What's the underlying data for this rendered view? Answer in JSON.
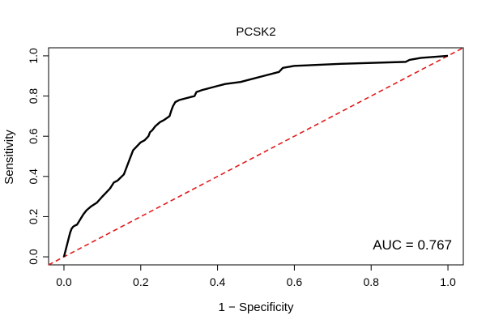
{
  "chart_data": {
    "type": "line",
    "title": "PCSK2",
    "xlabel": "1 − Specificity",
    "ylabel": "Sensitivity",
    "xlim": [
      -0.04,
      1.04
    ],
    "ylim": [
      -0.04,
      1.04
    ],
    "grid": false,
    "x_ticks": [
      0.0,
      0.2,
      0.4,
      0.6,
      0.8,
      1.0
    ],
    "x_tick_labels": [
      "0.0",
      "0.2",
      "0.4",
      "0.6",
      "0.8",
      "1.0"
    ],
    "y_ticks": [
      0.0,
      0.2,
      0.4,
      0.6,
      0.8,
      1.0
    ],
    "y_tick_labels": [
      "0.0",
      "0.2",
      "0.4",
      "0.6",
      "0.8",
      "1.0"
    ],
    "annotation": "AUC = 0.767",
    "series": [
      {
        "color": "#000000",
        "style": "solid",
        "x": [
          0.0,
          0.004,
          0.008,
          0.012,
          0.016,
          0.02,
          0.024,
          0.028,
          0.034,
          0.05,
          0.054,
          0.058,
          0.064,
          0.07,
          0.086,
          0.1,
          0.11,
          0.12,
          0.13,
          0.14,
          0.156,
          0.16,
          0.164,
          0.168,
          0.172,
          0.176,
          0.18,
          0.185,
          0.19,
          0.2,
          0.21,
          0.22,
          0.224,
          0.23,
          0.234,
          0.238,
          0.244,
          0.25,
          0.26,
          0.275,
          0.28,
          0.284,
          0.29,
          0.3,
          0.34,
          0.345,
          0.36,
          0.38,
          0.4,
          0.42,
          0.46,
          0.48,
          0.52,
          0.56,
          0.57,
          0.6,
          0.72,
          0.89,
          0.9,
          0.93,
          1.0
        ],
        "y": [
          0.0,
          0.03,
          0.06,
          0.09,
          0.12,
          0.14,
          0.15,
          0.155,
          0.16,
          0.21,
          0.22,
          0.23,
          0.24,
          0.25,
          0.27,
          0.3,
          0.32,
          0.34,
          0.37,
          0.38,
          0.41,
          0.43,
          0.45,
          0.47,
          0.49,
          0.51,
          0.53,
          0.54,
          0.55,
          0.57,
          0.58,
          0.6,
          0.62,
          0.63,
          0.64,
          0.65,
          0.66,
          0.67,
          0.68,
          0.7,
          0.73,
          0.75,
          0.77,
          0.78,
          0.8,
          0.82,
          0.83,
          0.84,
          0.85,
          0.86,
          0.87,
          0.88,
          0.9,
          0.92,
          0.94,
          0.95,
          0.96,
          0.97,
          0.98,
          0.99,
          1.0
        ]
      },
      {
        "color": "#e31a1c",
        "style": "dashed",
        "x": [
          -0.04,
          1.04
        ],
        "y": [
          -0.04,
          1.04
        ]
      }
    ]
  }
}
